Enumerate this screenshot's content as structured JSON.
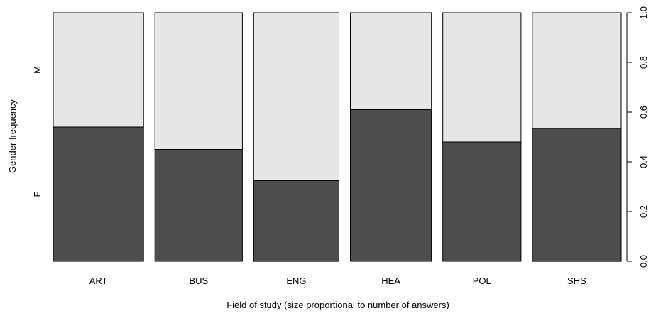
{
  "chart_data": {
    "type": "bar",
    "subtype": "stacked-proportional (spine plot)",
    "categories": [
      "ART",
      "BUS",
      "ENG",
      "HEA",
      "POL",
      "SHS"
    ],
    "relative_widths": [
      127,
      123,
      120,
      114,
      110,
      125
    ],
    "series": [
      {
        "name": "F",
        "values": [
          0.54,
          0.45,
          0.325,
          0.61,
          0.48,
          0.535
        ]
      },
      {
        "name": "M",
        "values": [
          0.46,
          0.55,
          0.675,
          0.39,
          0.52,
          0.465
        ]
      }
    ],
    "xlabel": "Field of study (size proportional to number of answers)",
    "ylabel": "Gender frequency",
    "left_axis_labels": [
      "F",
      "M"
    ],
    "right_axis_ticks": [
      "0.0",
      "0.2",
      "0.4",
      "0.6",
      "0.8",
      "1.0"
    ],
    "ylim": [
      0,
      1
    ],
    "grid": false,
    "colors": {
      "F": "#4d4d4d",
      "M": "#e6e6e6",
      "border": "#000000"
    }
  }
}
